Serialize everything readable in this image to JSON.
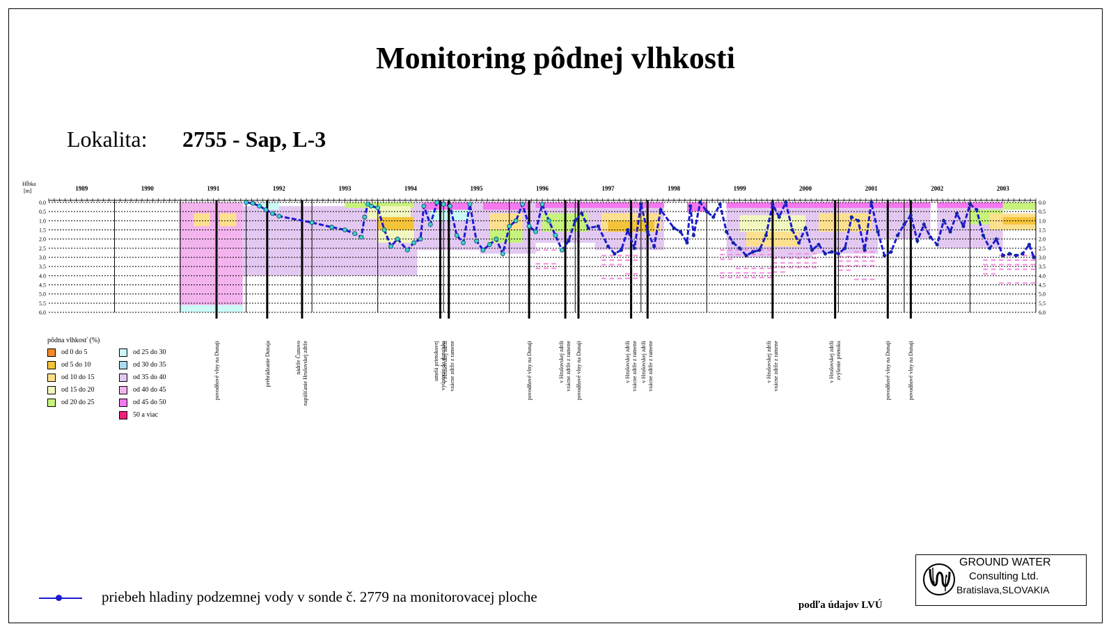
{
  "title": "Monitoring pôdnej vlhkosti",
  "location": {
    "label": "Lokalita:",
    "value": "2755 - Sap, L-3"
  },
  "chart_data": {
    "type": "heatmap",
    "ylabel": "Hĺbka [m]",
    "ylim": [
      6.0,
      0.0
    ],
    "y_ticks": [
      "0.0",
      "0.5",
      "1.0",
      "1.5",
      "2.0",
      "2.5",
      "3.0",
      "3.5",
      "4.0",
      "4.5",
      "5.0",
      "5.5",
      "6.0"
    ],
    "xlim": [
      1989.0,
      2004.0
    ],
    "year_labels": [
      "1989",
      "1990",
      "1991",
      "1992",
      "1993",
      "1994",
      "1995",
      "1996",
      "1997",
      "1998",
      "1999",
      "2000",
      "2001",
      "2002",
      "2003"
    ],
    "legend_title": "pôdna vlhkosť (%)",
    "legend": [
      {
        "label": "od 0 do 5",
        "color": "#f08a2a"
      },
      {
        "label": "od 5 do 10",
        "color": "#f4c33a"
      },
      {
        "label": "od 10 do 15",
        "color": "#fde08e"
      },
      {
        "label": "od 15 do 20",
        "color": "#f2f7bf"
      },
      {
        "label": "od 20 do 25",
        "color": "#c7f27c"
      },
      {
        "label": "od 25 do 30",
        "color": "#ccfaf6"
      },
      {
        "label": "od 30 do 35",
        "color": "#a9dcef"
      },
      {
        "label": "od 35 do 40",
        "color": "#e3c9f1"
      },
      {
        "label": "od 40 do 45",
        "color": "#f3b4ee"
      },
      {
        "label": "od 45 do 50",
        "color": "#f578ef"
      },
      {
        "label": "50 a viac",
        "color": "#f0207c"
      }
    ],
    "moisture_blocks": [
      {
        "x": [
          1990.98,
          1991.95
        ],
        "y": [
          0.0,
          4.0
        ],
        "class": "od 40 do 45"
      },
      {
        "x": [
          1990.98,
          1991.95
        ],
        "y": [
          4.0,
          5.6
        ],
        "class": "od 40 do 45"
      },
      {
        "x": [
          1990.98,
          1991.95
        ],
        "y": [
          5.6,
          6.0
        ],
        "class": "od 25 do 30"
      },
      {
        "x": [
          1991.2,
          1991.45
        ],
        "y": [
          0.6,
          1.3
        ],
        "class": "od 10 do 15"
      },
      {
        "x": [
          1991.6,
          1991.85
        ],
        "y": [
          0.6,
          1.3
        ],
        "class": "od 10 do 15"
      },
      {
        "x": [
          1991.95,
          1993.5
        ],
        "y": [
          0.2,
          4.0
        ],
        "class": "od 35 do 40"
      },
      {
        "x": [
          1992.2,
          1992.5
        ],
        "y": [
          0.0,
          0.4
        ],
        "class": "od 25 do 30"
      },
      {
        "x": [
          1993.5,
          1994.6
        ],
        "y": [
          0.0,
          4.0
        ],
        "class": "od 35 do 40"
      },
      {
        "x": [
          1993.5,
          1994.6
        ],
        "y": [
          0.0,
          0.3
        ],
        "class": "od 20 do 25"
      },
      {
        "x": [
          1993.85,
          1994.5
        ],
        "y": [
          0.2,
          0.9
        ],
        "class": "od 15 do 20"
      },
      {
        "x": [
          1994.0,
          1994.55
        ],
        "y": [
          0.8,
          1.5
        ],
        "class": "od 5 do 10"
      },
      {
        "x": [
          1994.0,
          1994.55
        ],
        "y": [
          1.5,
          2.2
        ],
        "class": "od 15 do 20"
      },
      {
        "x": [
          1994.55,
          1995.55
        ],
        "y": [
          0.0,
          2.6
        ],
        "class": "od 35 do 40"
      },
      {
        "x": [
          1994.7,
          1995.4
        ],
        "y": [
          0.0,
          0.4
        ],
        "class": "od 45 do 50"
      },
      {
        "x": [
          1994.8,
          1995.4
        ],
        "y": [
          0.4,
          1.0
        ],
        "class": "od 25 do 30"
      },
      {
        "x": [
          1995.55,
          1996.4
        ],
        "y": [
          0.0,
          2.8
        ],
        "class": "od 35 do 40"
      },
      {
        "x": [
          1995.6,
          1996.3
        ],
        "y": [
          0.0,
          0.4
        ],
        "class": "od 45 do 50"
      },
      {
        "x": [
          1995.7,
          1996.2
        ],
        "y": [
          0.6,
          1.5
        ],
        "class": "od 10 do 15"
      },
      {
        "x": [
          1995.7,
          1996.2
        ],
        "y": [
          1.5,
          2.2
        ],
        "class": "od 20 do 25"
      },
      {
        "x": [
          1996.4,
          1997.3
        ],
        "y": [
          0.0,
          2.2
        ],
        "class": "od 35 do 40"
      },
      {
        "x": [
          1996.4,
          1997.3
        ],
        "y": [
          0.0,
          0.3
        ],
        "class": "od 45 do 50"
      },
      {
        "x": [
          1996.5,
          1997.2
        ],
        "y": [
          0.6,
          1.6
        ],
        "class": "od 20 do 25"
      },
      {
        "x": [
          1997.3,
          1998.35
        ],
        "y": [
          0.0,
          2.6
        ],
        "class": "od 35 do 40"
      },
      {
        "x": [
          1997.3,
          1998.35
        ],
        "y": [
          0.0,
          0.3
        ],
        "class": "od 45 do 50"
      },
      {
        "x": [
          1997.4,
          1998.3
        ],
        "y": [
          0.6,
          1.6
        ],
        "class": "od 10 do 15"
      },
      {
        "x": [
          1997.5,
          1998.2
        ],
        "y": [
          1.0,
          1.6
        ],
        "class": "od 5 do 10"
      },
      {
        "x": [
          1998.7,
          1999.0
        ],
        "y": [
          0.0,
          0.5
        ],
        "class": "od 45 do 50"
      },
      {
        "x": [
          1999.3,
          2000.6
        ],
        "y": [
          0.0,
          3.0
        ],
        "class": "od 35 do 40"
      },
      {
        "x": [
          1999.3,
          2000.6
        ],
        "y": [
          0.0,
          0.3
        ],
        "class": "od 45 do 50"
      },
      {
        "x": [
          1999.5,
          2000.5
        ],
        "y": [
          0.7,
          1.6
        ],
        "class": "od 15 do 20"
      },
      {
        "x": [
          1999.6,
          2000.4
        ],
        "y": [
          1.6,
          2.4
        ],
        "class": "od 10 do 15"
      },
      {
        "x": [
          2000.6,
          2001.6
        ],
        "y": [
          0.0,
          2.8
        ],
        "class": "od 35 do 40"
      },
      {
        "x": [
          2000.6,
          2001.6
        ],
        "y": [
          0.0,
          0.3
        ],
        "class": "od 45 do 50"
      },
      {
        "x": [
          2000.7,
          2001.5
        ],
        "y": [
          0.6,
          1.6
        ],
        "class": "od 10 do 15"
      },
      {
        "x": [
          2001.6,
          2002.4
        ],
        "y": [
          0.0,
          2.0
        ],
        "class": "od 35 do 40"
      },
      {
        "x": [
          2001.6,
          2002.4
        ],
        "y": [
          0.0,
          0.3
        ],
        "class": "od 45 do 50"
      },
      {
        "x": [
          2002.5,
          2003.5
        ],
        "y": [
          0.0,
          2.5
        ],
        "class": "od 35 do 40"
      },
      {
        "x": [
          2002.5,
          2003.5
        ],
        "y": [
          0.0,
          0.3
        ],
        "class": "od 45 do 50"
      },
      {
        "x": [
          2003.0,
          2003.5
        ],
        "y": [
          0.4,
          1.2
        ],
        "class": "od 20 do 25"
      },
      {
        "x": [
          2003.3,
          2004.0
        ],
        "y": [
          0.6,
          1.5
        ],
        "class": "od 10 do 15"
      },
      {
        "x": [
          2003.5,
          2004.0
        ],
        "y": [
          0.8,
          1.2
        ],
        "class": "od 5 do 10"
      },
      {
        "x": [
          2003.5,
          2004.0
        ],
        "y": [
          0.0,
          0.4
        ],
        "class": "od 20 do 25"
      }
    ],
    "groundwater_series": {
      "name": "priebeh hladiny podzemnej vody v sonde č. 2779 na monitorovacej ploche",
      "x": [
        1992.0,
        1992.1,
        1992.2,
        1992.3,
        1992.4,
        1992.5,
        1993.0,
        1993.3,
        1993.5,
        1993.65,
        1993.75,
        1993.8,
        1993.85,
        1993.9,
        1994.0,
        1994.1,
        1994.2,
        1994.3,
        1994.45,
        1994.55,
        1994.65,
        1994.7,
        1994.8,
        1994.9,
        1995.0,
        1995.1,
        1995.2,
        1995.3,
        1995.4,
        1995.5,
        1995.6,
        1995.7,
        1995.8,
        1995.9,
        1996.0,
        1996.1,
        1996.2,
        1996.3,
        1996.4,
        1996.5,
        1996.6,
        1996.7,
        1996.8,
        1996.9,
        1997.0,
        1997.1,
        1997.2,
        1997.35,
        1997.5,
        1997.6,
        1997.7,
        1997.8,
        1997.9,
        1998.0,
        1998.1,
        1998.2,
        1998.3,
        1998.5,
        1998.6,
        1998.7,
        1998.75,
        1998.8,
        1998.9,
        1999.0,
        1999.1,
        1999.2,
        1999.3,
        1999.4,
        1999.5,
        1999.6,
        1999.7,
        1999.8,
        1999.9,
        2000.0,
        2000.1,
        2000.2,
        2000.3,
        2000.4,
        2000.5,
        2000.6,
        2000.7,
        2000.8,
        2000.9,
        2001.0,
        2001.1,
        2001.2,
        2001.3,
        2001.4,
        2001.5,
        2001.6,
        2001.7,
        2001.8,
        2001.9,
        2002.0,
        2002.1,
        2002.2,
        2002.3,
        2002.4,
        2002.5,
        2002.6,
        2002.7,
        2002.8,
        2002.9,
        2003.0,
        2003.1,
        2003.2,
        2003.3,
        2003.4,
        2003.5,
        2003.6,
        2003.7,
        2003.8,
        2003.9,
        2003.97
      ],
      "y": [
        0.0,
        0.05,
        0.2,
        0.4,
        0.6,
        0.75,
        1.1,
        1.35,
        1.5,
        1.7,
        1.9,
        0.8,
        0.1,
        0.2,
        0.3,
        1.5,
        2.4,
        2.0,
        2.6,
        2.2,
        2.0,
        0.2,
        1.2,
        0.0,
        0.1,
        0.2,
        1.8,
        2.2,
        0.1,
        2.1,
        2.6,
        2.3,
        2.0,
        2.8,
        1.3,
        1.0,
        0.1,
        1.3,
        1.6,
        0.1,
        1.0,
        1.8,
        2.6,
        2.1,
        1.0,
        0.6,
        1.4,
        1.3,
        2.4,
        2.8,
        2.6,
        1.5,
        2.5,
        0.1,
        1.6,
        2.4,
        0.4,
        1.4,
        1.6,
        2.2,
        0.2,
        1.8,
        0.0,
        0.5,
        0.8,
        0.1,
        1.6,
        2.2,
        2.5,
        2.9,
        2.7,
        2.6,
        1.8,
        0.1,
        0.8,
        0.0,
        1.5,
        2.2,
        1.4,
        2.6,
        2.3,
        2.8,
        2.7,
        2.8,
        2.5,
        0.8,
        1.0,
        2.6,
        0.0,
        1.6,
        2.9,
        2.7,
        1.8,
        1.2,
        0.7,
        2.1,
        1.2,
        1.9,
        2.3,
        1.0,
        1.6,
        0.6,
        1.3,
        0.1,
        0.4,
        1.8,
        2.5,
        2.0,
        2.9,
        2.8,
        2.9,
        2.8,
        2.3,
        3.0
      ],
      "color": "#1a1ad0"
    },
    "event_lines": [
      {
        "x": 1991.55,
        "label": "povodňové vlny na Dunaji",
        "lines": 1
      },
      {
        "x": 1992.32,
        "label": "prehrádzanie Dunaja",
        "lines": 1
      },
      {
        "x": 1992.85,
        "label": "napúšťanie Hrušovskej zdrže",
        "label2": "nádrže Čunovo",
        "lines": 2
      },
      {
        "x": 1994.95,
        "label": "vyústenie do dunajska",
        "label2": "umelá prietokovej",
        "lines": 2
      },
      {
        "x": 1995.08,
        "label": "vzácne zdrže z ramene",
        "label2": "v Hrušovskej zdrži",
        "lines": 2
      },
      {
        "x": 1996.3,
        "label": "povodňové vlny na Dunaji",
        "lines": 1
      },
      {
        "x": 1996.85,
        "label": "vzácne zdrže z ramene",
        "label2": "v Hrušovskej zdrži",
        "lines": 2
      },
      {
        "x": 1997.05,
        "label": "povodňové vlny na Dunaji",
        "lines": 1
      },
      {
        "x": 1997.85,
        "label": "vzácne zdrže z ramene",
        "label2": "v Hrušovskej zdrži",
        "lines": 2
      },
      {
        "x": 1998.1,
        "label": "vzácne zdrže z ramene",
        "label2": "v Hrušovskej zdrži",
        "lines": 2
      },
      {
        "x": 2000.0,
        "label": "vzácne zdrže z ramene",
        "label2": "v Hrušovskej zdrži",
        "lines": 2
      },
      {
        "x": 2000.95,
        "label": "zvýšenie prietoku",
        "label2": "v Hrušovskej zdrži",
        "lines": 2
      },
      {
        "x": 2001.75,
        "label": "povodňové vlny na Dunaji",
        "lines": 1
      },
      {
        "x": 2002.1,
        "label": "povodňové vlny na Dunaji",
        "lines": 1
      }
    ]
  },
  "footer": {
    "series_label": "priebeh hladiny podzemnej vody v sonde č. 2779 na monitorovacej ploche",
    "source": "podľa údajov LVÚ",
    "logo_line1": "GROUND WATER",
    "logo_line2": "Consulting Ltd.",
    "logo_line3": "Bratislava,SLOVAKIA"
  }
}
